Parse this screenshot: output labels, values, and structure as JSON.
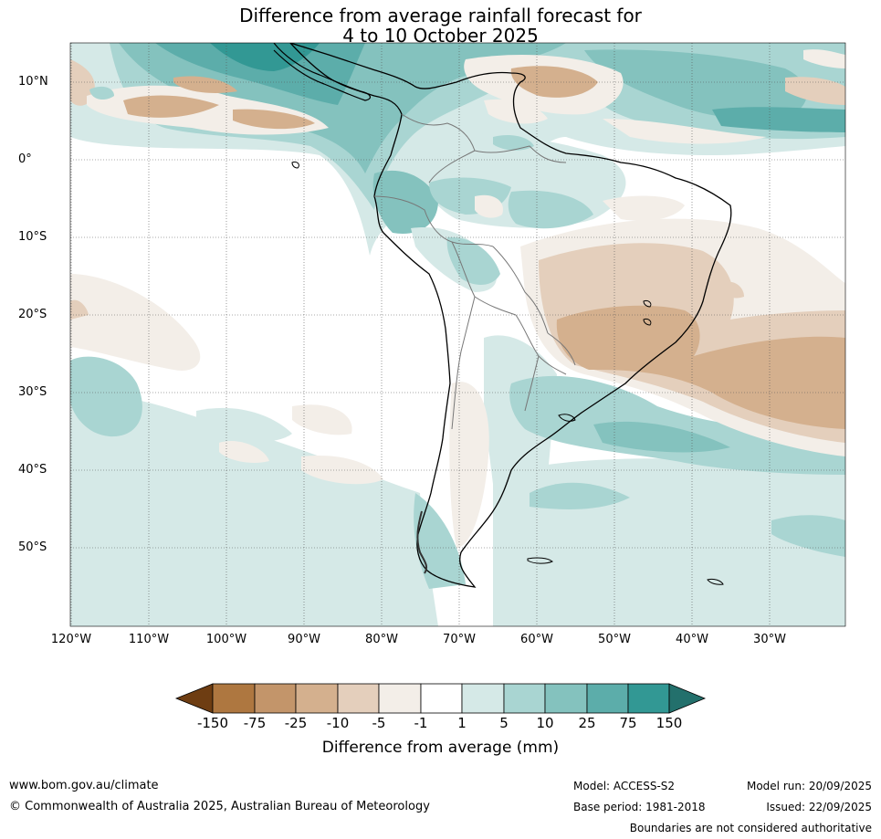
{
  "title": {
    "line1": "Difference from average rainfall forecast for",
    "line2": "4 to 10 October 2025"
  },
  "map": {
    "region": "South America",
    "latitude_labels": [
      "10°N",
      "0°",
      "10°S",
      "20°S",
      "30°S",
      "40°S",
      "50°S"
    ],
    "longitude_labels": [
      "120°W",
      "110°W",
      "100°W",
      "90°W",
      "80°W",
      "70°W",
      "60°W",
      "50°W",
      "40°W",
      "30°W"
    ]
  },
  "colorbar": {
    "ticks": [
      "-150",
      "-75",
      "-25",
      "-10",
      "-5",
      "-1",
      "1",
      "5",
      "10",
      "25",
      "75",
      "150"
    ],
    "colors": [
      "#6e3d12",
      "#ae7740",
      "#c3956a",
      "#d4b08e",
      "#e4cfbc",
      "#f3eee8",
      "#ffffff",
      "#d5e9e7",
      "#a9d5d2",
      "#84c2be",
      "#5cadaa",
      "#329894",
      "#23706c"
    ],
    "label": "Difference from average (mm)"
  },
  "footer": {
    "website": "www.bom.gov.au/climate",
    "copyright": "© Commonwealth of Australia 2025, Australian Bureau of Meteorology",
    "model": "Model: ACCESS-S2",
    "base_period": "Base period: 1981-2018",
    "model_run": "Model run: 20/09/2025",
    "issued": "Issued: 22/09/2025",
    "disclaimer": "Boundaries are not considered authoritative"
  }
}
